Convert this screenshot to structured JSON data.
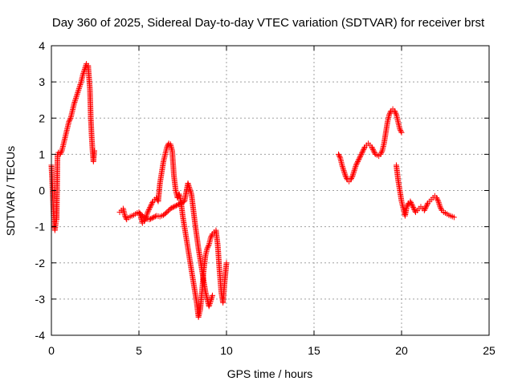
{
  "chart_data": {
    "type": "scatter",
    "title": "Day 360 of 2025, Sidereal Day-to-day VTEC variation (SDTVAR) for receiver brst",
    "xlabel": "GPS time / hours",
    "ylabel": "SDTVAR / TECUs",
    "xlim": [
      0,
      25
    ],
    "ylim": [
      -4,
      4
    ],
    "xticks": [
      "0",
      "5",
      "10",
      "15",
      "20",
      "25"
    ],
    "yticks": [
      "-4",
      "-3",
      "-2",
      "-1",
      "0",
      "1",
      "2",
      "3",
      "4"
    ],
    "grid": true,
    "marker": "plus",
    "marker_color": "#ff0000",
    "series": [
      {
        "x": [
          0.0,
          0.05,
          0.1,
          0.15,
          0.2,
          0.25,
          0.3,
          0.35,
          0.4,
          0.5,
          0.6,
          0.7,
          0.8,
          0.9,
          1.0,
          1.1,
          1.2,
          1.3,
          1.4,
          1.5,
          1.6,
          1.7,
          1.8,
          1.9,
          2.0,
          2.1,
          2.2,
          2.25,
          2.3,
          2.35,
          2.4,
          2.45
        ],
        "y": [
          0.7,
          0.2,
          -0.4,
          -0.9,
          -1.1,
          -0.9,
          -0.8,
          1.0,
          1.05,
          1.0,
          1.1,
          1.3,
          1.5,
          1.7,
          1.9,
          2.0,
          2.2,
          2.4,
          2.55,
          2.7,
          2.85,
          3.0,
          3.2,
          3.35,
          3.5,
          3.45,
          2.8,
          2.0,
          1.5,
          1.1,
          0.8,
          1.1
        ]
      },
      {
        "x": [
          3.9,
          4.0,
          4.1,
          4.2,
          4.3,
          4.4,
          4.5,
          4.6,
          4.7,
          4.8,
          4.9,
          5.0,
          5.1,
          5.2,
          5.3,
          5.4,
          5.5,
          5.6,
          5.7,
          5.8,
          5.9,
          6.0,
          6.1,
          6.2,
          6.3,
          6.4,
          6.5,
          6.6,
          6.7,
          6.8,
          6.9,
          7.0,
          7.1,
          7.2,
          7.3,
          7.4,
          7.5,
          7.6,
          7.7,
          7.8,
          7.9,
          8.0,
          8.1,
          8.2,
          8.3,
          8.4,
          8.5,
          8.6,
          8.7,
          8.8,
          8.9,
          9.0,
          9.1,
          9.2,
          9.3,
          9.4,
          9.5,
          9.6,
          9.7,
          9.8,
          9.9,
          10.0
        ],
        "y": [
          -0.6,
          -0.55,
          -0.5,
          -0.7,
          -0.8,
          -0.75,
          -0.72,
          -0.7,
          -0.68,
          -0.65,
          -0.62,
          -0.6,
          -0.72,
          -0.9,
          -0.85,
          -0.75,
          -0.6,
          -0.5,
          -0.4,
          -0.3,
          -0.25,
          -0.2,
          -0.3,
          0.2,
          0.5,
          0.8,
          1.0,
          1.2,
          1.3,
          1.28,
          1.1,
          0.4,
          0.0,
          -0.2,
          -0.1,
          -0.3,
          -0.7,
          -1.0,
          -1.3,
          -1.6,
          -1.9,
          -2.2,
          -2.5,
          -2.8,
          -3.1,
          -3.5,
          -3.3,
          -2.8,
          -2.2,
          -1.8,
          -1.6,
          -1.5,
          -1.3,
          -1.2,
          -1.15,
          -1.1,
          -1.5,
          -2.2,
          -2.8,
          -3.1,
          -2.5,
          -2.0
        ]
      },
      {
        "x": [
          5.0,
          5.2,
          5.4,
          5.6,
          5.8,
          6.0,
          6.2,
          6.4,
          6.6,
          6.8,
          7.0,
          7.2,
          7.4,
          7.6,
          7.8,
          8.0,
          8.2,
          8.4,
          8.6,
          8.8,
          9.0,
          9.2
        ],
        "y": [
          -0.6,
          -0.7,
          -0.78,
          -0.8,
          -0.75,
          -0.7,
          -0.72,
          -0.68,
          -0.6,
          -0.5,
          -0.45,
          -0.4,
          -0.35,
          -0.3,
          0.2,
          -0.1,
          -0.9,
          -1.6,
          -2.2,
          -2.8,
          -3.2,
          -2.9
        ]
      },
      {
        "x": [
          16.4,
          16.5,
          16.6,
          16.7,
          16.8,
          16.9,
          17.0,
          17.1,
          17.2,
          17.3,
          17.4,
          17.5,
          17.6,
          17.7,
          17.8,
          17.9,
          18.0,
          18.1,
          18.2,
          18.3,
          18.4,
          18.5,
          18.6,
          18.7,
          18.8,
          18.9,
          19.0,
          19.1,
          19.2,
          19.3,
          19.4,
          19.5,
          19.6,
          19.7,
          19.8,
          19.9,
          20.0
        ],
        "y": [
          1.0,
          0.9,
          0.7,
          0.55,
          0.4,
          0.3,
          0.25,
          0.3,
          0.4,
          0.55,
          0.7,
          0.8,
          0.9,
          1.0,
          1.1,
          1.2,
          1.25,
          1.3,
          1.25,
          1.2,
          1.1,
          1.0,
          0.98,
          0.95,
          1.0,
          1.1,
          1.3,
          1.6,
          1.9,
          2.1,
          2.2,
          2.25,
          2.2,
          2.1,
          1.9,
          1.7,
          1.6
        ]
      },
      {
        "x": [
          19.7,
          19.8,
          19.9,
          20.0,
          20.1,
          20.2,
          20.3,
          20.4,
          20.5,
          20.6,
          20.7,
          20.8,
          20.9,
          21.0,
          21.1,
          21.2,
          21.3,
          21.4,
          21.5,
          21.6,
          21.7,
          21.8,
          21.9,
          22.0,
          22.1,
          22.2,
          22.3,
          22.4,
          22.5,
          22.6,
          22.7,
          22.8,
          22.9,
          23.0
        ],
        "y": [
          0.7,
          0.3,
          0.0,
          -0.3,
          -0.5,
          -0.7,
          -0.45,
          -0.35,
          -0.3,
          -0.4,
          -0.5,
          -0.6,
          -0.55,
          -0.5,
          -0.45,
          -0.5,
          -0.55,
          -0.45,
          -0.35,
          -0.3,
          -0.25,
          -0.2,
          -0.15,
          -0.2,
          -0.3,
          -0.45,
          -0.55,
          -0.6,
          -0.62,
          -0.65,
          -0.68,
          -0.7,
          -0.72,
          -0.74
        ]
      }
    ]
  }
}
